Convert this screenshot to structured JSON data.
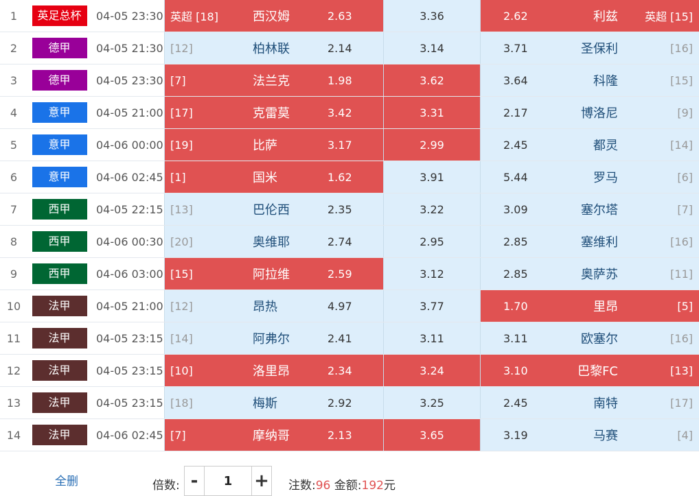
{
  "matches": [
    {
      "no": "1",
      "league": "英足总杯",
      "league_color": "#e60012",
      "time": "04-05 23:30",
      "home_rank": "英超 [18]",
      "home": "西汉姆",
      "odds_win": "2.63",
      "odds_draw": "3.36",
      "odds_loss": "2.62",
      "away": "利兹",
      "away_rank": "英超 [15]",
      "sel_home": true,
      "sel_draw": false,
      "sel_away": true
    },
    {
      "no": "2",
      "league": "德甲",
      "league_color": "#990099",
      "time": "04-05 21:30",
      "home_rank": "[12]",
      "home": "柏林联",
      "odds_win": "2.14",
      "odds_draw": "3.14",
      "odds_loss": "3.71",
      "away": "圣保利",
      "away_rank": "[16]",
      "sel_home": false,
      "sel_draw": false,
      "sel_away": false
    },
    {
      "no": "3",
      "league": "德甲",
      "league_color": "#990099",
      "time": "04-05 23:30",
      "home_rank": "[7]",
      "home": "法兰克",
      "odds_win": "1.98",
      "odds_draw": "3.62",
      "odds_loss": "3.64",
      "away": "科隆",
      "away_rank": "[15]",
      "sel_home": true,
      "sel_draw": true,
      "sel_away": false
    },
    {
      "no": "4",
      "league": "意甲",
      "league_color": "#1a73e8",
      "time": "04-05 21:00",
      "home_rank": "[17]",
      "home": "克雷莫",
      "odds_win": "3.42",
      "odds_draw": "3.31",
      "odds_loss": "2.17",
      "away": "博洛尼",
      "away_rank": "[9]",
      "sel_home": true,
      "sel_draw": true,
      "sel_away": false
    },
    {
      "no": "5",
      "league": "意甲",
      "league_color": "#1a73e8",
      "time": "04-06 00:00",
      "home_rank": "[19]",
      "home": "比萨",
      "odds_win": "3.17",
      "odds_draw": "2.99",
      "odds_loss": "2.45",
      "away": "都灵",
      "away_rank": "[14]",
      "sel_home": true,
      "sel_draw": true,
      "sel_away": false
    },
    {
      "no": "6",
      "league": "意甲",
      "league_color": "#1a73e8",
      "time": "04-06 02:45",
      "home_rank": "[1]",
      "home": "国米",
      "odds_win": "1.62",
      "odds_draw": "3.91",
      "odds_loss": "5.44",
      "away": "罗马",
      "away_rank": "[6]",
      "sel_home": true,
      "sel_draw": false,
      "sel_away": false
    },
    {
      "no": "7",
      "league": "西甲",
      "league_color": "#006633",
      "time": "04-05 22:15",
      "home_rank": "[13]",
      "home": "巴伦西",
      "odds_win": "2.35",
      "odds_draw": "3.22",
      "odds_loss": "3.09",
      "away": "塞尔塔",
      "away_rank": "[7]",
      "sel_home": false,
      "sel_draw": false,
      "sel_away": false
    },
    {
      "no": "8",
      "league": "西甲",
      "league_color": "#006633",
      "time": "04-06 00:30",
      "home_rank": "[20]",
      "home": "奥维耶",
      "odds_win": "2.74",
      "odds_draw": "2.95",
      "odds_loss": "2.85",
      "away": "塞维利",
      "away_rank": "[16]",
      "sel_home": false,
      "sel_draw": false,
      "sel_away": false
    },
    {
      "no": "9",
      "league": "西甲",
      "league_color": "#006633",
      "time": "04-06 03:00",
      "home_rank": "[15]",
      "home": "阿拉维",
      "odds_win": "2.59",
      "odds_draw": "3.12",
      "odds_loss": "2.85",
      "away": "奥萨苏",
      "away_rank": "[11]",
      "sel_home": true,
      "sel_draw": false,
      "sel_away": false
    },
    {
      "no": "10",
      "league": "法甲",
      "league_color": "#5c2e2e",
      "time": "04-05 21:00",
      "home_rank": "[12]",
      "home": "昂热",
      "odds_win": "4.97",
      "odds_draw": "3.77",
      "odds_loss": "1.70",
      "away": "里昂",
      "away_rank": "[5]",
      "sel_home": false,
      "sel_draw": false,
      "sel_away": true
    },
    {
      "no": "11",
      "league": "法甲",
      "league_color": "#5c2e2e",
      "time": "04-05 23:15",
      "home_rank": "[14]",
      "home": "阿弗尔",
      "odds_win": "2.41",
      "odds_draw": "3.11",
      "odds_loss": "3.11",
      "away": "欧塞尔",
      "away_rank": "[16]",
      "sel_home": false,
      "sel_draw": false,
      "sel_away": false
    },
    {
      "no": "12",
      "league": "法甲",
      "league_color": "#5c2e2e",
      "time": "04-05 23:15",
      "home_rank": "[10]",
      "home": "洛里昂",
      "odds_win": "2.34",
      "odds_draw": "3.24",
      "odds_loss": "3.10",
      "away": "巴黎FC",
      "away_rank": "[13]",
      "sel_home": true,
      "sel_draw": true,
      "sel_away": true
    },
    {
      "no": "13",
      "league": "法甲",
      "league_color": "#5c2e2e",
      "time": "04-05 23:15",
      "home_rank": "[18]",
      "home": "梅斯",
      "odds_win": "2.92",
      "odds_draw": "3.25",
      "odds_loss": "2.45",
      "away": "南特",
      "away_rank": "[17]",
      "sel_home": false,
      "sel_draw": false,
      "sel_away": false
    },
    {
      "no": "14",
      "league": "法甲",
      "league_color": "#5c2e2e",
      "time": "04-06 02:45",
      "home_rank": "[7]",
      "home": "摩纳哥",
      "odds_win": "2.13",
      "odds_draw": "3.65",
      "odds_loss": "3.19",
      "away": "马赛",
      "away_rank": "[4]",
      "sel_home": true,
      "sel_draw": true,
      "sel_away": false
    }
  ],
  "footer": {
    "clear_all": "全删",
    "multiplier_label": "倍数:",
    "minus": "-",
    "multiplier_value": "1",
    "plus": "+",
    "bets_label": "注数:",
    "bets_value": "96",
    "amount_label": "金额:",
    "amount_value": "192",
    "currency": "元"
  }
}
